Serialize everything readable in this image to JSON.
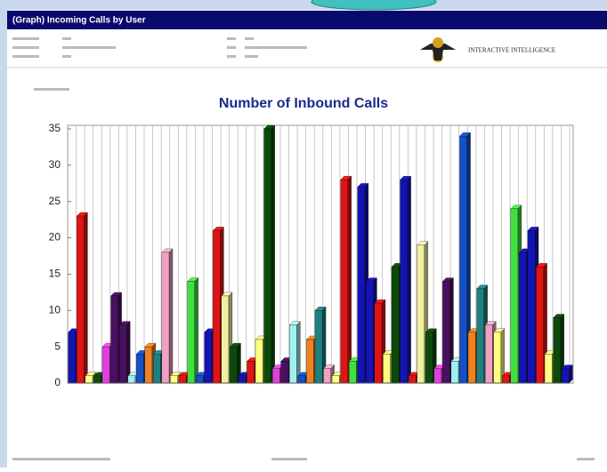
{
  "header": {
    "title": "(Graph) Incoming Calls by User",
    "brand": "INTERACTIVE INTELLIGENCE"
  },
  "chart_data": {
    "type": "bar3d",
    "title": "Number of Inbound Calls",
    "categories": [
      null,
      null,
      null,
      null,
      null,
      null,
      null,
      null,
      null,
      null,
      null,
      null,
      null,
      null,
      null,
      null,
      null,
      null,
      null,
      null,
      null,
      null,
      null,
      null,
      null,
      null,
      null,
      null,
      null,
      null,
      null,
      null,
      null,
      null,
      null,
      null,
      null,
      null,
      null,
      null,
      null,
      null,
      null,
      null,
      null,
      null,
      null,
      null,
      null,
      null,
      null,
      null,
      null,
      null,
      null,
      null,
      null,
      null,
      null
    ],
    "values": [
      7,
      23,
      1,
      1,
      5,
      12,
      8,
      1,
      4,
      5,
      4,
      18,
      1,
      1,
      14,
      1,
      7,
      21,
      12,
      5,
      1,
      3,
      6,
      35,
      2,
      3,
      8,
      1,
      6,
      10,
      2,
      1,
      28,
      3,
      27,
      14,
      11,
      4,
      16,
      28,
      1,
      19,
      7,
      2,
      14,
      3,
      34,
      7,
      13,
      8,
      7,
      1,
      24,
      18,
      21,
      16,
      4,
      9,
      2
    ],
    "colors": [
      "#1414b4",
      "#e01414",
      "#ffff80",
      "#0c4a0c",
      "#e040e0",
      "#4a1060",
      "#4a1060",
      "#a0f0f0",
      "#1450c8",
      "#f08020",
      "#208080",
      "#f0a0c0",
      "#ffff80",
      "#e01414",
      "#40e040",
      "#1450c8",
      "#1414b4",
      "#e01414",
      "#f0f0a0",
      "#0c4a0c",
      "#1414b4",
      "#e01414",
      "#ffff80",
      "#0c4a0c",
      "#e040e0",
      "#4a1060",
      "#a0f0f0",
      "#1450c8",
      "#f08020",
      "#208080",
      "#f0a0c0",
      "#ffff80",
      "#e01414",
      "#40e040",
      "#1414b4",
      "#1414b4",
      "#e01414",
      "#ffff80",
      "#0c4a0c",
      "#1414b4",
      "#e01414",
      "#f0f0a0",
      "#0c4a0c",
      "#e040e0",
      "#4a1060",
      "#a0f0f0",
      "#1450c8",
      "#f08020",
      "#208080",
      "#f0a0c0",
      "#ffff80",
      "#e01414",
      "#40e040",
      "#1414b4",
      "#1414b4",
      "#e01414",
      "#ffff80",
      "#0c4a0c",
      "#1414b4"
    ],
    "ylim": [
      0,
      35
    ],
    "yticks": [
      0,
      5,
      10,
      15,
      20,
      25,
      30,
      35
    ],
    "grid": true
  }
}
